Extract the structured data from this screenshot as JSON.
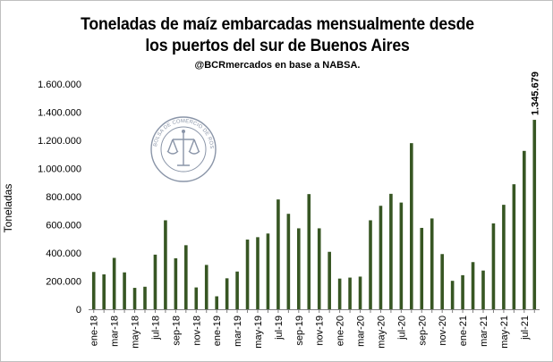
{
  "title_line1": "Toneladas de maíz  embarcadas mensualmente desde",
  "title_line2": "los puertos del sur de Buenos Aires",
  "subtitle": "@BCRmercados en base a NABSA.",
  "watermark_text": "BOLSA DE COMERCIO DE ROSARIO",
  "colors": {
    "bar": "#375623",
    "axis": "#7f7f7f",
    "text": "#000000"
  },
  "chart_data": {
    "type": "bar",
    "ylabel": "Toneladas",
    "xlabel": "",
    "ylim": [
      0,
      1600000
    ],
    "y_ticks": [
      0,
      200000,
      400000,
      600000,
      800000,
      1000000,
      1200000,
      1400000,
      1600000
    ],
    "y_tick_labels": [
      "0",
      "200.000",
      "400.000",
      "600.000",
      "800.000",
      "1.000.000",
      "1.200.000",
      "1.400.000",
      "1.600.000"
    ],
    "grid": false,
    "categories": [
      "ene-18",
      "feb-18",
      "mar-18",
      "abr-18",
      "may-18",
      "jun-18",
      "jul-18",
      "ago-18",
      "sep-18",
      "oct-18",
      "nov-18",
      "dic-18",
      "ene-19",
      "feb-19",
      "mar-19",
      "abr-19",
      "may-19",
      "jun-19",
      "jul-19",
      "ago-19",
      "sep-19",
      "oct-19",
      "nov-19",
      "dic-19",
      "ene-20",
      "feb-20",
      "mar-20",
      "abr-20",
      "may-20",
      "jun-20",
      "jul-20",
      "ago-20",
      "sep-20",
      "oct-20",
      "nov-20",
      "dic-20",
      "ene-21",
      "feb-21",
      "mar-21",
      "abr-21",
      "may-21",
      "jun-21",
      "jul-21",
      "ago-21"
    ],
    "x_tick_labels": [
      "ene-18",
      "mar-18",
      "may-18",
      "jul-18",
      "sep-18",
      "nov-18",
      "ene-19",
      "mar-19",
      "may-19",
      "jul-19",
      "sep-19",
      "nov-19",
      "ene-20",
      "mar-20",
      "may-20",
      "jul-20",
      "sep-20",
      "nov-20",
      "ene-21",
      "mar-21",
      "may-21",
      "jul-21"
    ],
    "values": [
      265000,
      248000,
      365000,
      262000,
      152000,
      160000,
      388000,
      632000,
      362000,
      455000,
      155000,
      315000,
      92000,
      220000,
      268000,
      495000,
      512000,
      538000,
      780000,
      678000,
      575000,
      818000,
      575000,
      408000,
      218000,
      225000,
      232000,
      632000,
      735000,
      820000,
      758000,
      1180000,
      578000,
      645000,
      392000,
      202000,
      242000,
      335000,
      275000,
      610000,
      742000,
      888000,
      1125000,
      1345679
    ],
    "annotations": [
      {
        "category": "ago-21",
        "text": "1.345.679"
      }
    ]
  }
}
